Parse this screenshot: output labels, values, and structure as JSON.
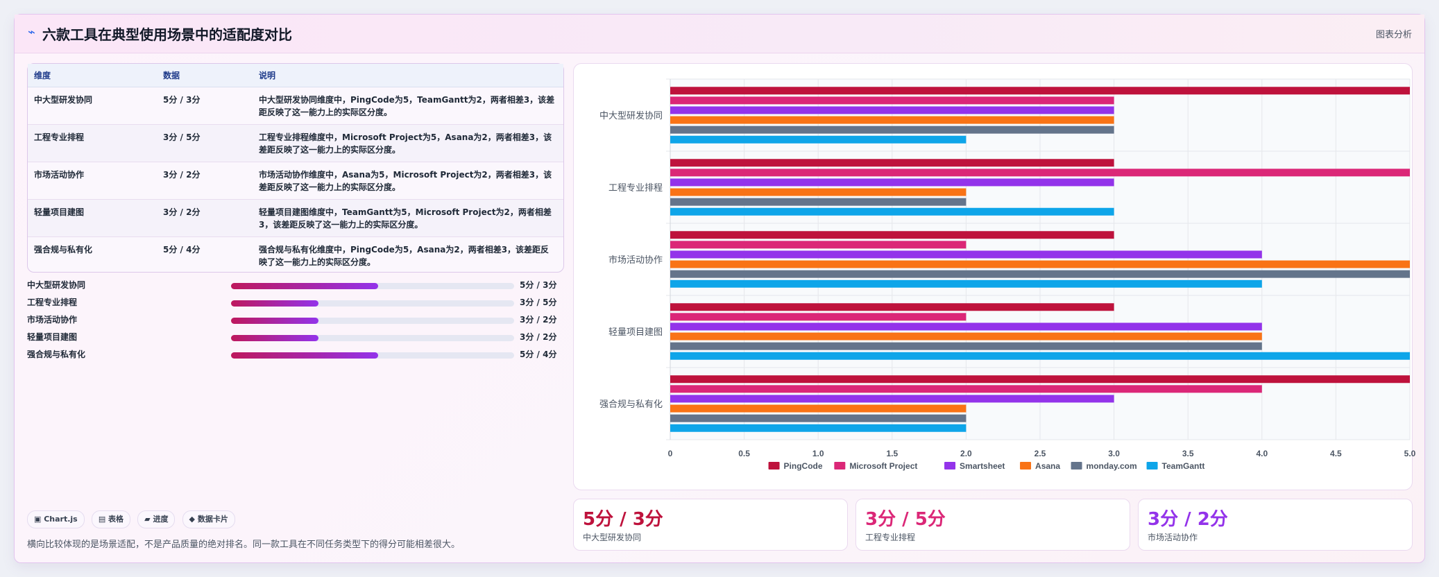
{
  "header": {
    "icon": "chart-icon",
    "title": "六款工具在典型使用场景中的适配度对比",
    "right_label": "图表分析"
  },
  "table": {
    "headers": [
      "维度",
      "数据",
      "说明"
    ],
    "rows": [
      [
        "中大型研发协同",
        "5分 / 3分",
        "中大型研发协同维度中，PingCode为5，TeamGantt为2，两者相差3，该差距反映了这一能力上的实际区分度。"
      ],
      [
        "工程专业排程",
        "3分 / 5分",
        "工程专业排程维度中，Microsoft Project为5，Asana为2，两者相差3，该差距反映了这一能力上的实际区分度。"
      ],
      [
        "市场活动协作",
        "3分 / 2分",
        "市场活动协作维度中，Asana为5，Microsoft Project为2，两者相差3，该差距反映了这一能力上的实际区分度。"
      ],
      [
        "轻量项目建图",
        "3分 / 2分",
        "轻量项目建图维度中，TeamGantt为5，Microsoft Project为2，两者相差3，该差距反映了这一能力上的实际区分度。"
      ],
      [
        "强合规与私有化",
        "5分 / 4分",
        "强合规与私有化维度中，PingCode为5，Asana为2，两者相差3，该差距反映了这一能力上的实际区分度。"
      ]
    ]
  },
  "progress": [
    {
      "label": "中大型研发协同",
      "fraction": 0.52,
      "value": "5分 / 3分"
    },
    {
      "label": "工程专业排程",
      "fraction": 0.31,
      "value": "3分 / 5分"
    },
    {
      "label": "市场活动协作",
      "fraction": 0.31,
      "value": "3分 / 2分"
    },
    {
      "label": "轻量项目建图",
      "fraction": 0.31,
      "value": "3分 / 2分"
    },
    {
      "label": "强合规与私有化",
      "fraction": 0.52,
      "value": "5分 / 4分"
    }
  ],
  "chips": [
    "▣ Chart.js",
    "▤ 表格",
    "▰ 进度",
    "◆ 数据卡片"
  ],
  "note": "横向比较体现的是场景适配，不是产品质量的绝对排名。同一款工具在不同任务类型下的得分可能相差很大。",
  "kpis": [
    {
      "value": "5分 / 3分",
      "label": "中大型研发协同",
      "color": "#be123c"
    },
    {
      "value": "3分 / 5分",
      "label": "工程专业排程",
      "color": "#db2777"
    },
    {
      "value": "3分 / 2分",
      "label": "市场活动协作",
      "color": "#9333ea"
    }
  ],
  "chart_data": {
    "type": "bar",
    "orientation": "horizontal",
    "categories": [
      "中大型研发协同",
      "工程专业排程",
      "市场活动协作",
      "轻量项目建图",
      "强合规与私有化"
    ],
    "series": [
      {
        "name": "PingCode",
        "color": "#be123c",
        "values": [
          5,
          3,
          3,
          3,
          5
        ]
      },
      {
        "name": "Microsoft Project",
        "color": "#db2777",
        "values": [
          3,
          5,
          2,
          2,
          4
        ]
      },
      {
        "name": "Smartsheet",
        "color": "#9333ea",
        "values": [
          3,
          3,
          4,
          4,
          3
        ]
      },
      {
        "name": "Asana",
        "color": "#f97316",
        "values": [
          3,
          2,
          5,
          4,
          2
        ]
      },
      {
        "name": "monday.com",
        "color": "#64748b",
        "values": [
          3,
          2,
          5,
          4,
          2
        ]
      },
      {
        "name": "TeamGantt",
        "color": "#0ea5e9",
        "values": [
          2,
          3,
          4,
          5,
          2
        ]
      }
    ],
    "xlim": [
      0,
      5
    ],
    "ticks": [
      "0",
      "0.5",
      "1.0",
      "1.5",
      "2.0",
      "2.5",
      "3.0",
      "3.5",
      "4.0",
      "4.5",
      "5.0"
    ],
    "grid": true,
    "legend": "bottom"
  }
}
